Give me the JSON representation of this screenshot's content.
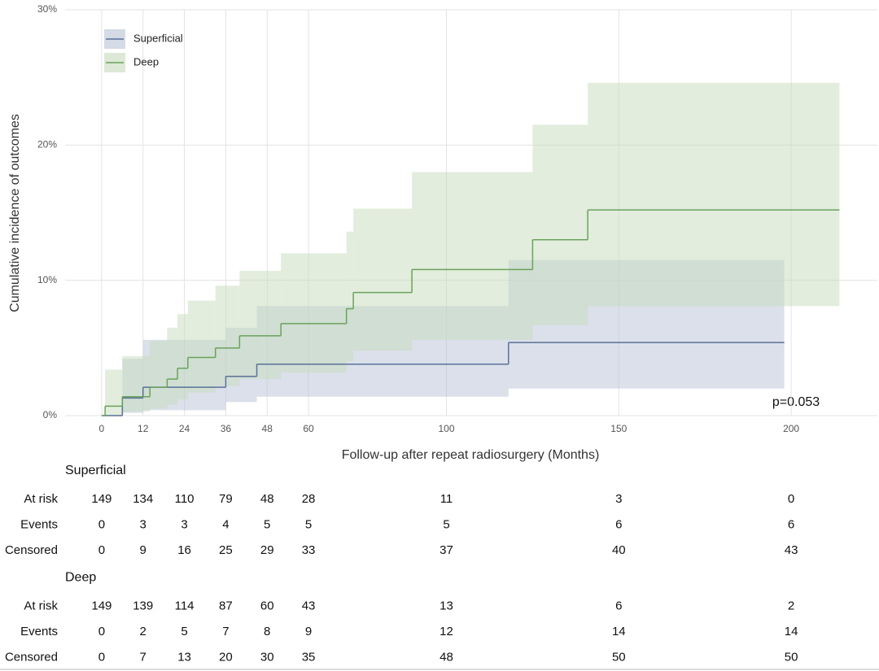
{
  "chart_data": {
    "type": "step",
    "xlabel": "Follow-up after repeat radiosurgery (Months)",
    "ylabel": "Cumulative incidence of outcomes",
    "xlim": [
      -10.6,
      225
    ],
    "ylim": [
      0,
      30
    ],
    "xticks": [
      0,
      12,
      24,
      36,
      48,
      60,
      100,
      150,
      200
    ],
    "yticks": [
      {
        "value": 0,
        "label": "0%"
      },
      {
        "value": 10,
        "label": "10%"
      },
      {
        "value": 20,
        "label": "20%"
      },
      {
        "value": 30,
        "label": "30%"
      }
    ],
    "grid": true,
    "legend": "upper left",
    "annotation": "p=0.053",
    "series": [
      {
        "name": "Superficial",
        "color": "#5a7197",
        "band_color": "#b8c2d6",
        "x": [
          0,
          6,
          12,
          36,
          45,
          118,
          198
        ],
        "values": [
          0,
          1.3,
          2.1,
          2.9,
          3.8,
          5.4,
          5.4
        ],
        "lower": [
          0,
          0.2,
          0.4,
          1.0,
          1.4,
          2.0,
          2.0
        ],
        "upper": [
          0,
          4.2,
          5.6,
          6.5,
          8.1,
          11.5,
          11.5
        ]
      },
      {
        "name": "Deep",
        "color": "#6aa35a",
        "band_color": "#c6dbbb",
        "x": [
          0,
          1,
          6,
          14,
          19,
          22,
          25,
          33,
          40,
          52,
          71,
          73,
          90,
          125,
          141,
          214
        ],
        "values": [
          0,
          0.7,
          1.4,
          2.1,
          2.7,
          3.5,
          4.3,
          5.0,
          5.9,
          6.8,
          7.9,
          9.1,
          10.8,
          13.0,
          15.2,
          15.2
        ],
        "lower": [
          0,
          0,
          0.3,
          0.5,
          0.8,
          1.2,
          1.7,
          2.2,
          2.7,
          3.2,
          4.0,
          4.8,
          5.6,
          6.7,
          8.1,
          8.1
        ],
        "upper": [
          0,
          3.4,
          4.4,
          5.5,
          6.5,
          7.5,
          8.5,
          9.6,
          10.7,
          12.0,
          13.6,
          15.3,
          18.0,
          21.5,
          24.6,
          24.6
        ]
      }
    ]
  },
  "risk_table": {
    "groups": [
      {
        "name": "Superficial",
        "rows": [
          {
            "label": "At risk",
            "values": [
              149,
              134,
              110,
              79,
              48,
              28,
              11,
              3,
              0
            ]
          },
          {
            "label": "Events",
            "values": [
              0,
              3,
              3,
              4,
              5,
              5,
              5,
              6,
              6
            ]
          },
          {
            "label": "Censored",
            "values": [
              0,
              9,
              16,
              25,
              29,
              33,
              37,
              40,
              43
            ]
          }
        ]
      },
      {
        "name": "Deep",
        "rows": [
          {
            "label": "At risk",
            "values": [
              149,
              139,
              114,
              87,
              60,
              43,
              13,
              6,
              2
            ]
          },
          {
            "label": "Events",
            "values": [
              0,
              2,
              5,
              7,
              8,
              9,
              12,
              14,
              14
            ]
          },
          {
            "label": "Censored",
            "values": [
              0,
              7,
              13,
              20,
              30,
              35,
              48,
              50,
              50
            ]
          }
        ]
      }
    ]
  }
}
